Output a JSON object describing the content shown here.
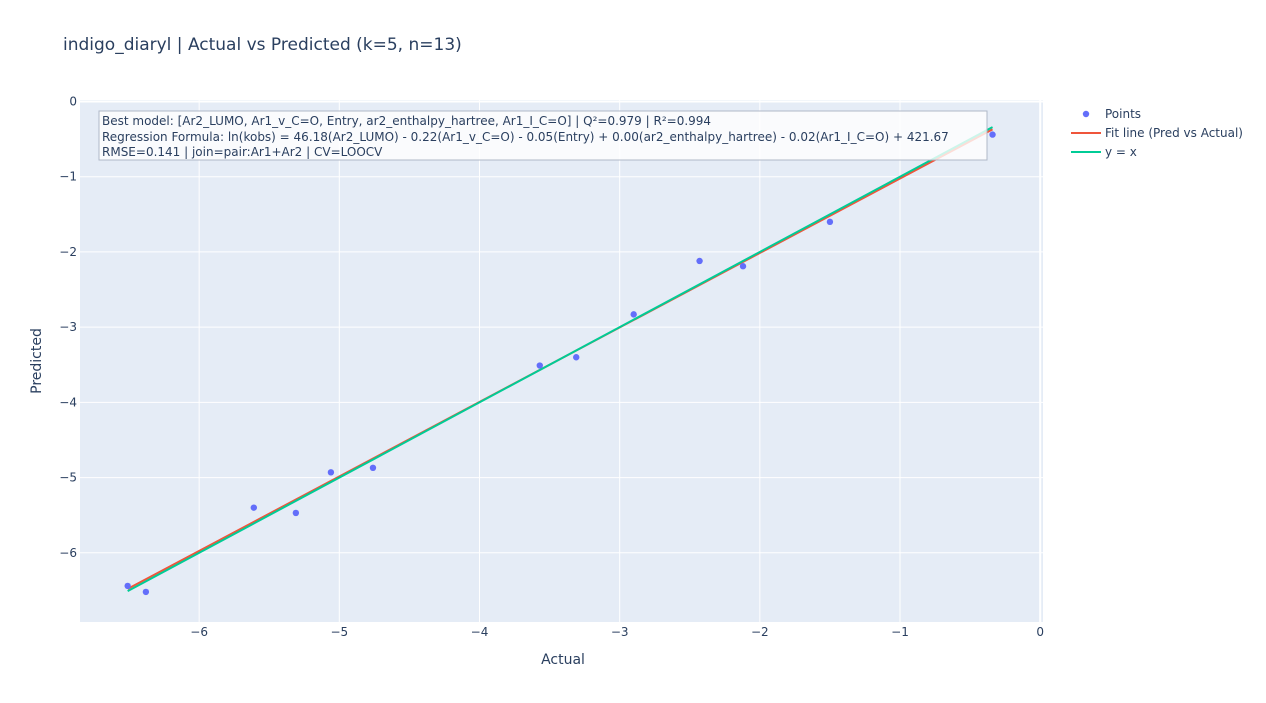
{
  "chart_data": {
    "type": "scatter",
    "title": "indigo_diaryl | Actual vs Predicted (k=5, n=13)",
    "xlabel": "Actual",
    "ylabel": "Predicted",
    "xlim": [
      -6.85,
      0.02
    ],
    "ylim": [
      -6.92,
      0.02
    ],
    "xticks": [
      -6,
      -5,
      -4,
      -3,
      -2,
      -1,
      0
    ],
    "yticks": [
      0,
      -1,
      -2,
      -3,
      -4,
      -5,
      -6
    ],
    "grid": true,
    "legend_position": "top-right, outside plot",
    "annotation": [
      "Best model: [Ar2_LUMO, Ar1_v_C=O, Entry, ar2_enthalpy_hartree, Ar1_I_C=O] | Q²=0.979 | R²=0.994",
      "Regression Formula: ln(kobs) = 46.18(Ar2_LUMO) - 0.22(Ar1_v_C=O) - 0.05(Entry) + 0.00(ar2_enthalpy_hartree) - 0.02(Ar1_I_C=O) + 421.67",
      "RMSE=0.141 | join=pair:Ar1+Ar2 | CV=LOOCV"
    ],
    "series": [
      {
        "name": "Points",
        "mode": "markers",
        "color": "#636efa",
        "x": [
          -6.51,
          -6.38,
          -5.61,
          -5.31,
          -5.06,
          -4.76,
          -3.57,
          -3.31,
          -2.9,
          -2.43,
          -2.12,
          -1.5,
          -0.34
        ],
        "y": [
          -6.44,
          -6.52,
          -5.4,
          -5.47,
          -4.93,
          -4.87,
          -3.51,
          -3.4,
          -2.83,
          -2.12,
          -2.19,
          -1.6,
          -0.44
        ]
      },
      {
        "name": "Fit line (Pred vs Actual)",
        "mode": "lines",
        "color": "#ef553b",
        "x": [
          -6.51,
          -0.34
        ],
        "y": [
          -6.48,
          -0.37
        ]
      },
      {
        "name": "y = x",
        "mode": "lines",
        "color": "#00cc96",
        "x": [
          -6.51,
          -0.34
        ],
        "y": [
          -6.51,
          -0.34
        ]
      }
    ]
  }
}
